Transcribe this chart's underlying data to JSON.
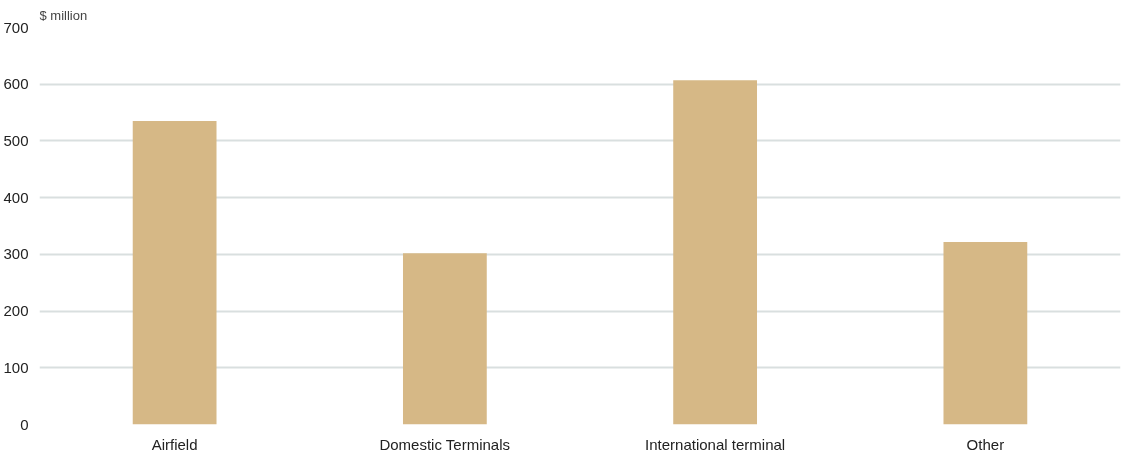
{
  "chart_data": {
    "type": "bar",
    "ylabel": "$ million",
    "categories": [
      "Airfield",
      "Domestic Terminals",
      "International terminal",
      "Other"
    ],
    "values": [
      535,
      302,
      607,
      322
    ],
    "color": "#d6b886",
    "ylim": [
      0,
      700
    ],
    "yticks": [
      0,
      100,
      200,
      300,
      400,
      500,
      600,
      700
    ],
    "grid": "y"
  }
}
